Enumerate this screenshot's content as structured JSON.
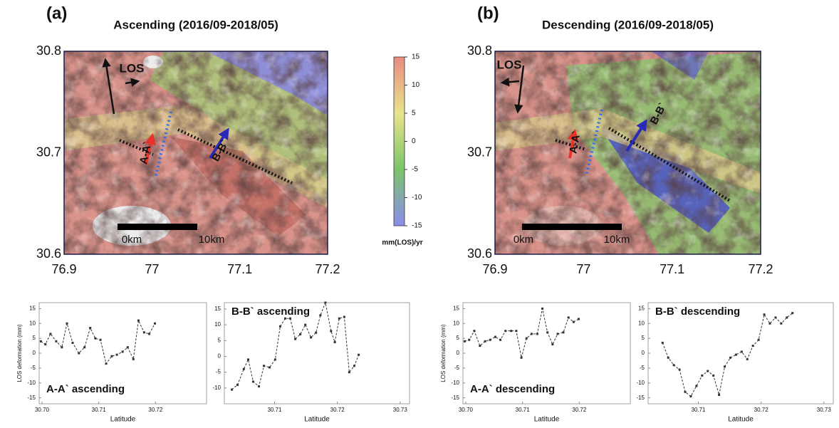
{
  "chart_data": [
    {
      "type": "map",
      "panel_label": "(a)",
      "title": "Ascending (2016/09-2018/05)",
      "xlim": [
        76.9,
        77.2
      ],
      "ylim": [
        30.6,
        30.8
      ],
      "xticks": [
        76.9,
        77,
        77.1,
        77.2
      ],
      "yticks": [
        30.6,
        30.7,
        30.8
      ],
      "annotations": [
        "LOS",
        "0km",
        "10km",
        "A-A`",
        "B-B`"
      ]
    },
    {
      "type": "map",
      "panel_label": "(b)",
      "title": "Descending (2016/09-2018/05)",
      "xlim": [
        76.9,
        77.2
      ],
      "ylim": [
        30.6,
        30.8
      ],
      "xticks": [
        76.9,
        77,
        77.1,
        77.2
      ],
      "yticks": [
        30.6,
        30.7,
        30.8
      ],
      "annotations": [
        "LOS",
        "0km",
        "10km",
        "A-A`",
        "B-B`"
      ]
    },
    {
      "type": "colorbar",
      "label": "mm(LOS)/yr",
      "ylim": [
        -15,
        15
      ],
      "yticks": [
        15,
        10,
        5,
        0,
        -5,
        -10,
        -15
      ],
      "colors": [
        "#8c8cee",
        "#7cc46a",
        "#e8e48c",
        "#e88c82"
      ]
    },
    {
      "type": "line",
      "label": "A-A` ascending",
      "label_color": "#e8322a",
      "xlabel": "Latitude",
      "ylabel": "LOS deformation (mm)",
      "x": [
        30.6998,
        30.7006,
        30.7015,
        30.7025,
        30.7035,
        30.7044,
        30.7054,
        30.7065,
        30.7075,
        30.7085,
        30.7094,
        30.7103,
        30.7113,
        30.7123,
        30.7132,
        30.7142,
        30.7151,
        30.7161,
        30.717,
        30.718,
        30.7189,
        30.7199
      ],
      "series": [
        {
          "color": "#333333",
          "values": [
            4,
            3,
            6.5,
            4,
            2,
            10,
            3.5,
            0,
            2,
            8.5,
            5,
            4.5,
            -3.5,
            -1,
            -0.5,
            0.5,
            2,
            -2,
            11,
            7,
            6.5,
            10
          ]
        }
      ],
      "xlim": [
        30.6995,
        30.729
      ],
      "ylim": [
        -17,
        17
      ],
      "xticks": [
        {
          "value": 30.7,
          "label": "30.70"
        },
        {
          "value": 30.71,
          "label": "30.71"
        },
        {
          "value": 30.72,
          "label": "30.72"
        }
      ],
      "yticks": [
        15,
        10,
        5,
        0,
        -5,
        -10,
        -15
      ]
    },
    {
      "type": "line",
      "label": "B-B` ascending",
      "label_color": "#2a2ab8",
      "xlabel": "Latitude",
      "x": [
        30.7032,
        30.7041,
        30.7051,
        30.7058,
        30.7066,
        30.7075,
        30.7083,
        30.7092,
        30.7101,
        30.7109,
        30.7117,
        30.7125,
        30.7133,
        30.7141,
        30.7149,
        30.7158,
        30.7166,
        30.7173,
        30.7181,
        30.719,
        30.7196,
        30.7203,
        30.7211,
        30.7219,
        30.7227,
        30.7234
      ],
      "series": [
        {
          "color": "#333333",
          "values": [
            -10.5,
            -9,
            -4,
            -1,
            -8,
            -9.5,
            -3,
            -3.5,
            -1,
            9.5,
            12,
            12,
            5.5,
            7,
            10,
            6,
            7.5,
            13,
            17,
            8,
            4.5,
            12,
            12.5,
            -5,
            -3,
            0.5
          ]
        }
      ],
      "xlim": [
        30.702,
        30.7315
      ],
      "ylim": [
        -15,
        17
      ],
      "xticks": [
        {
          "value": 30.71,
          "label": "30.71"
        },
        {
          "value": 30.72,
          "label": "30.72"
        },
        {
          "value": 30.73,
          "label": "30.73"
        }
      ],
      "yticks": [
        15,
        10,
        5,
        0,
        -5,
        -10
      ]
    },
    {
      "type": "line",
      "label": "A-A` descending",
      "label_color": "#e8322a",
      "xlabel": "Latitude",
      "ylabel": "LOS deformation (mm)",
      "x": [
        30.6998,
        30.7006,
        30.7015,
        30.7025,
        30.7034,
        30.7043,
        30.7052,
        30.7061,
        30.707,
        30.708,
        30.7089,
        30.7098,
        30.7107,
        30.7116,
        30.7126,
        30.7135,
        30.7144,
        30.7153,
        30.7162,
        30.7172,
        30.7181,
        30.719,
        30.7199
      ],
      "series": [
        {
          "color": "#333333",
          "values": [
            4,
            4.5,
            7.5,
            2.5,
            4,
            4.5,
            5.5,
            4.5,
            7.5,
            7.5,
            7.5,
            -1.5,
            5,
            6.5,
            6.5,
            15,
            7,
            3,
            6.5,
            7,
            12,
            10.5,
            11.5
          ]
        }
      ],
      "xlim": [
        30.6995,
        30.729
      ],
      "ylim": [
        -17,
        17
      ],
      "xticks": [
        {
          "value": 30.7,
          "label": "30.70"
        },
        {
          "value": 30.71,
          "label": "30.71"
        },
        {
          "value": 30.72,
          "label": "30.72"
        }
      ],
      "yticks": [
        15,
        10,
        5,
        0,
        -5,
        -10,
        -15
      ]
    },
    {
      "type": "line",
      "label": "B-B` descending",
      "label_color": "#2a2ab8",
      "xlabel": "Latitude",
      "x": [
        30.7043,
        30.7052,
        30.7061,
        30.707,
        30.7079,
        30.7088,
        30.7097,
        30.7106,
        30.7115,
        30.7124,
        30.7133,
        30.7142,
        30.7151,
        30.716,
        30.7169,
        30.7178,
        30.7187,
        30.7196,
        30.7205,
        30.7214,
        30.7223,
        30.7232,
        30.7241,
        30.725
      ],
      "series": [
        {
          "color": "#333333",
          "values": [
            3.5,
            -1.5,
            -4,
            -5.5,
            -13,
            -14.5,
            -11,
            -7.5,
            -6,
            -7.5,
            -14,
            -4.5,
            -1.5,
            -0.5,
            0.5,
            -2,
            2.5,
            4.5,
            13,
            10,
            12,
            10,
            12,
            13.5
          ]
        }
      ],
      "xlim": [
        30.702,
        30.7315
      ],
      "ylim": [
        -17,
        17
      ],
      "xticks": [
        {
          "value": 30.71,
          "label": "30.71"
        },
        {
          "value": 30.72,
          "label": "30.72"
        },
        {
          "value": 30.73,
          "label": "30.73"
        }
      ],
      "yticks": [
        15,
        10,
        5,
        0,
        -5,
        -10,
        -15
      ]
    }
  ]
}
